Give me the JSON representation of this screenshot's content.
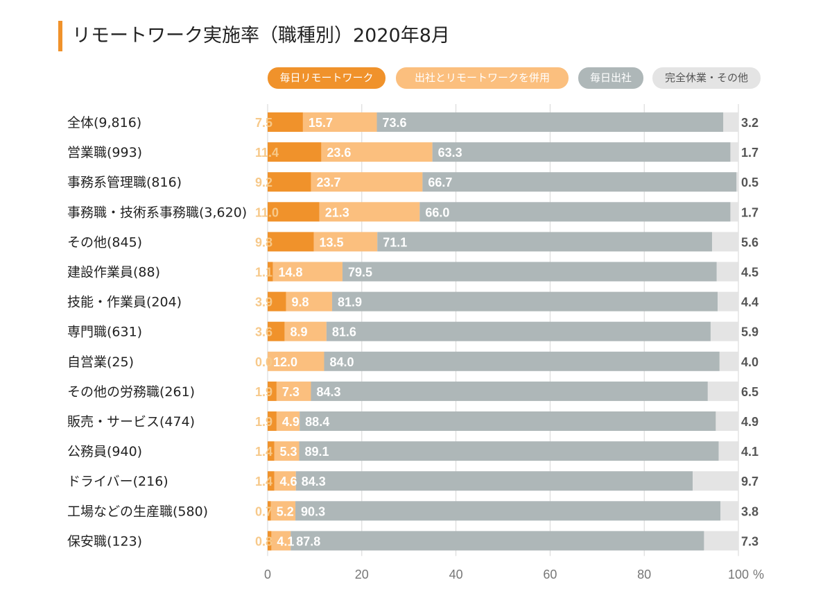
{
  "chart_data": {
    "type": "bar",
    "orientation": "horizontal",
    "stacked": true,
    "title": "リモートワーク実施率（職種別）2020年8月",
    "x_unit": "%",
    "xlim": [
      0,
      100
    ],
    "x_ticks": [
      "0",
      "20",
      "40",
      "60",
      "80",
      "100"
    ],
    "grid": true,
    "legend_position": "top",
    "categories": [
      "全体(9,816)",
      "営業職(993)",
      "事務系管理職(816)",
      "事務職・技術系事務職(3,620)",
      "その他(845)",
      "建設作業員(88)",
      "技能・作業員(204)",
      "専門職(631)",
      "自営業(25)",
      "その他の労務職(261)",
      "販売・サービス(474)",
      "公務員(940)",
      "ドライバー(216)",
      "工場などの生産職(580)",
      "保安職(123)"
    ],
    "series": [
      {
        "name": "毎日リモートワーク",
        "color": "#f0922b",
        "label_color": "#f7c98a",
        "values": [
          7.5,
          11.4,
          9.2,
          11.0,
          9.8,
          1.1,
          3.9,
          3.6,
          0.0,
          1.9,
          1.9,
          1.4,
          1.4,
          0.7,
          0.8
        ]
      },
      {
        "name": "出社とリモートワークを併用",
        "color": "#fbbf7e",
        "label_color": "#ffffff",
        "values": [
          15.7,
          23.6,
          23.7,
          21.3,
          13.5,
          14.8,
          9.8,
          8.9,
          12.0,
          7.3,
          4.9,
          5.3,
          4.6,
          5.2,
          4.1
        ]
      },
      {
        "name": "毎日出社",
        "color": "#aeb7b8",
        "label_color": "#ffffff",
        "values": [
          73.6,
          63.3,
          66.7,
          66.0,
          71.1,
          79.5,
          81.9,
          81.6,
          84.0,
          84.3,
          88.4,
          89.1,
          84.3,
          90.3,
          87.8
        ]
      },
      {
        "name": "完全休業・その他",
        "color": "#e4e4e4",
        "label_color": "#555555",
        "values": [
          3.2,
          1.7,
          0.5,
          1.7,
          5.6,
          4.5,
          4.4,
          5.9,
          4.0,
          6.5,
          4.9,
          4.1,
          9.7,
          3.8,
          7.3
        ]
      }
    ]
  }
}
